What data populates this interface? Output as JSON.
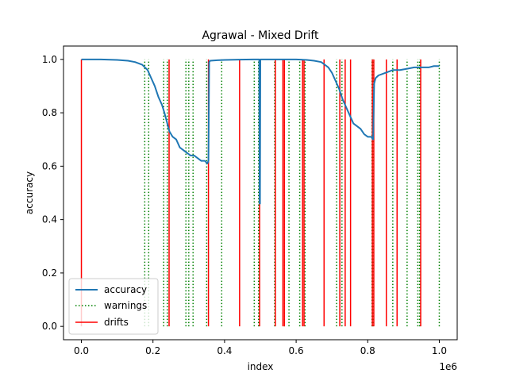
{
  "chart_data": {
    "type": "line",
    "title": "Agrawal - Mixed Drift",
    "xlabel": "index",
    "ylabel": "accuracy",
    "x_offset_label": "1e6",
    "xlim": [
      -50000,
      1050000
    ],
    "ylim": [
      -0.05,
      1.05
    ],
    "x_ticks": [
      0,
      200000,
      400000,
      600000,
      800000,
      1000000
    ],
    "x_tick_labels": [
      "0.0",
      "0.2",
      "0.4",
      "0.6",
      "0.8",
      "1.0"
    ],
    "y_ticks": [
      0,
      0.2,
      0.4,
      0.6,
      0.8,
      1.0
    ],
    "y_tick_labels": [
      "0.0",
      "0.2",
      "0.4",
      "0.6",
      "0.8",
      "1.0"
    ],
    "grid": false,
    "legend_position": "lower-left",
    "series": [
      {
        "name": "accuracy",
        "color": "#1f77b4",
        "style": "solid",
        "x": [
          0,
          50000,
          100000,
          130000,
          150000,
          170000,
          185000,
          195000,
          205000,
          215000,
          225000,
          232000,
          240000,
          246000,
          255000,
          265000,
          275000,
          285000,
          295000,
          305000,
          315000,
          325000,
          335000,
          345000,
          352000,
          355000,
          357000,
          360000,
          380000,
          400000,
          440000,
          480000,
          497000,
          498000,
          499000,
          500000,
          501000,
          502000,
          540000,
          600000,
          630000,
          650000,
          670000,
          680000,
          690000,
          700000,
          710000,
          720000,
          730000,
          740000,
          750000,
          760000,
          770000,
          780000,
          790000,
          800000,
          810000,
          815000,
          818000,
          822000,
          830000,
          850000,
          870000,
          890000,
          910000,
          930000,
          950000,
          970000,
          985000,
          1000000
        ],
        "y": [
          1.0,
          1.0,
          0.998,
          0.995,
          0.99,
          0.98,
          0.96,
          0.93,
          0.9,
          0.86,
          0.83,
          0.8,
          0.76,
          0.73,
          0.71,
          0.7,
          0.67,
          0.66,
          0.65,
          0.64,
          0.64,
          0.63,
          0.62,
          0.62,
          0.61,
          0.62,
          0.99,
          0.995,
          0.997,
          0.998,
          0.999,
          1.0,
          1.0,
          0.46,
          0.46,
          1.0,
          1.0,
          1.0,
          1.0,
          1.0,
          0.998,
          0.995,
          0.99,
          0.98,
          0.97,
          0.95,
          0.92,
          0.89,
          0.85,
          0.82,
          0.79,
          0.76,
          0.75,
          0.74,
          0.72,
          0.71,
          0.71,
          0.7,
          0.91,
          0.93,
          0.94,
          0.95,
          0.96,
          0.96,
          0.965,
          0.97,
          0.97,
          0.97,
          0.975,
          0.975
        ]
      },
      {
        "name": "warnings",
        "color": "#008000",
        "style": "dotted",
        "x": [
          177000,
          188000,
          230000,
          240000,
          292000,
          300000,
          312000,
          350000,
          392000,
          483000,
          495000,
          540000,
          567000,
          580000,
          610000,
          625000,
          713000,
          728000,
          812000,
          815000,
          870000,
          910000,
          940000,
          945000,
          1000000
        ],
        "y_range": [
          0,
          1
        ]
      },
      {
        "name": "drifts",
        "color": "#ff0000",
        "style": "solid",
        "x": [
          0,
          245000,
          355000,
          442000,
          498000,
          542000,
          563000,
          567000,
          618000,
          622000,
          678000,
          722000,
          737000,
          752000,
          813000,
          817000,
          852000,
          882000,
          948000
        ],
        "y_range": [
          0,
          1
        ]
      }
    ]
  }
}
